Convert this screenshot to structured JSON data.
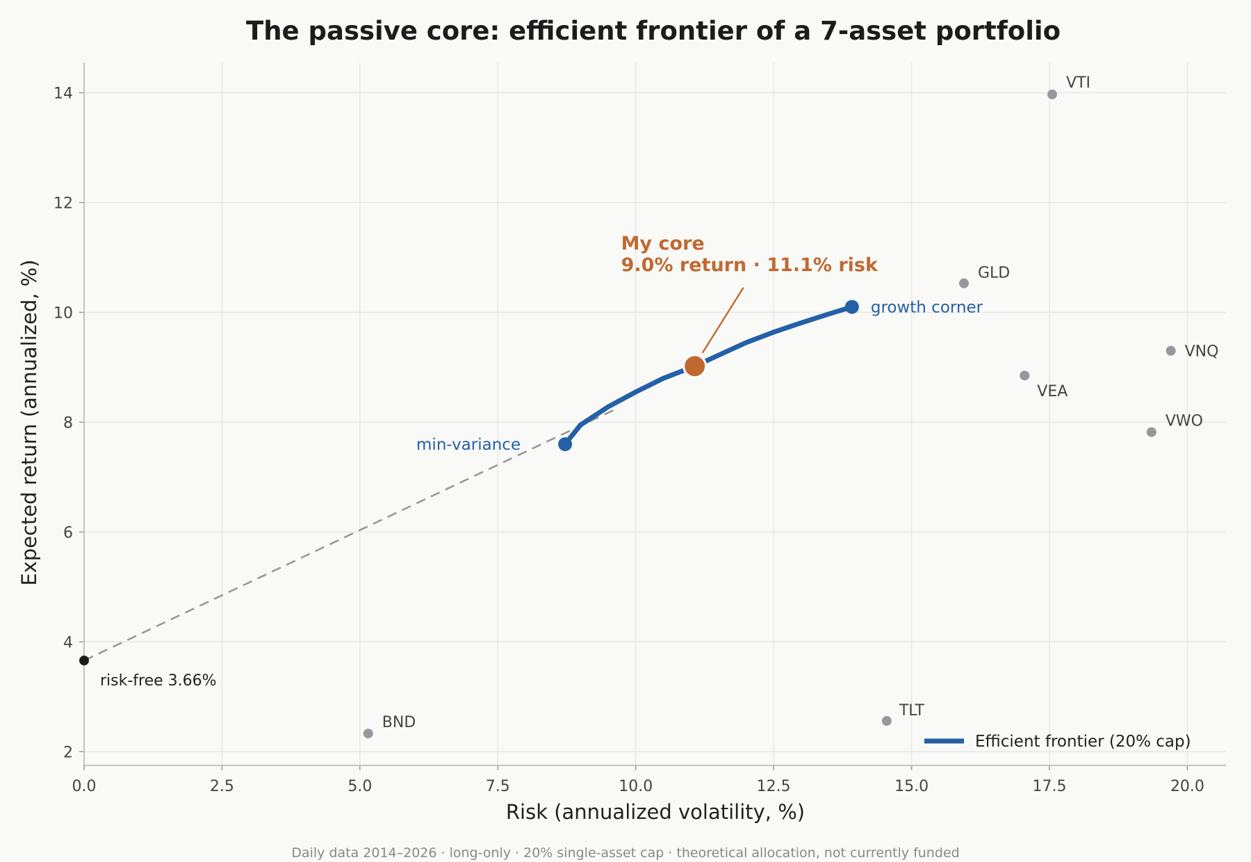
{
  "chart_data": {
    "type": "scatter",
    "title": "The passive core: efficient frontier of a 7-asset portfolio",
    "xlabel": "Risk  (annualized volatility, %)",
    "ylabel": "Expected return  (annualized, %)",
    "xlim": [
      0,
      20.7
    ],
    "ylim": [
      1.75,
      14.55
    ],
    "x_ticks": [
      "0.0",
      "2.5",
      "5.0",
      "7.5",
      "10.0",
      "12.5",
      "15.0",
      "17.5",
      "20.0"
    ],
    "y_ticks": [
      "2",
      "4",
      "6",
      "8",
      "10",
      "12",
      "14"
    ],
    "grid": true,
    "assets": [
      {
        "name": "VTI",
        "x": 17.55,
        "y": 13.97
      },
      {
        "name": "GLD",
        "x": 15.95,
        "y": 10.53
      },
      {
        "name": "VNQ",
        "x": 19.7,
        "y": 9.3
      },
      {
        "name": "VEA",
        "x": 17.05,
        "y": 8.85
      },
      {
        "name": "VWO",
        "x": 19.35,
        "y": 7.82
      },
      {
        "name": "BND",
        "x": 5.15,
        "y": 2.33
      },
      {
        "name": "TLT",
        "x": 14.55,
        "y": 2.56
      }
    ],
    "frontier": {
      "name": "Efficient frontier (20% cap)",
      "x": [
        8.72,
        9.0,
        9.5,
        10.0,
        10.5,
        11.07,
        11.5,
        12.0,
        12.5,
        13.0,
        13.5,
        13.92
      ],
      "y": [
        7.6,
        7.95,
        8.28,
        8.55,
        8.8,
        9.02,
        9.22,
        9.45,
        9.64,
        9.81,
        9.97,
        10.1
      ]
    },
    "min_variance": {
      "label": "min-variance",
      "x": 8.72,
      "y": 7.6
    },
    "growth_corner": {
      "label": "growth corner",
      "x": 13.92,
      "y": 10.1
    },
    "my_core": {
      "title": "My core",
      "detail": "9.0% return  ·  11.1% risk",
      "x": 11.07,
      "y": 9.02
    },
    "risk_free": {
      "label": "risk-free 3.66%",
      "x": 0,
      "y": 3.66
    },
    "capital_market_line_end": {
      "x": 9.62,
      "y": 8.23
    },
    "legend": {
      "label": "Efficient frontier (20% cap)",
      "position": "bottom-right"
    },
    "footnote": "Daily data 2014–2026 · long-only · 20% single-asset cap · theoretical allocation, not currently funded",
    "colors": {
      "frontier": "#2460a7",
      "my_core": "#bf6a31",
      "asset": "#97979d",
      "risk_free": "#1a1a1a",
      "cml": "#999999",
      "grid": "#e8e8e6",
      "background": "#f9f9f7"
    }
  }
}
